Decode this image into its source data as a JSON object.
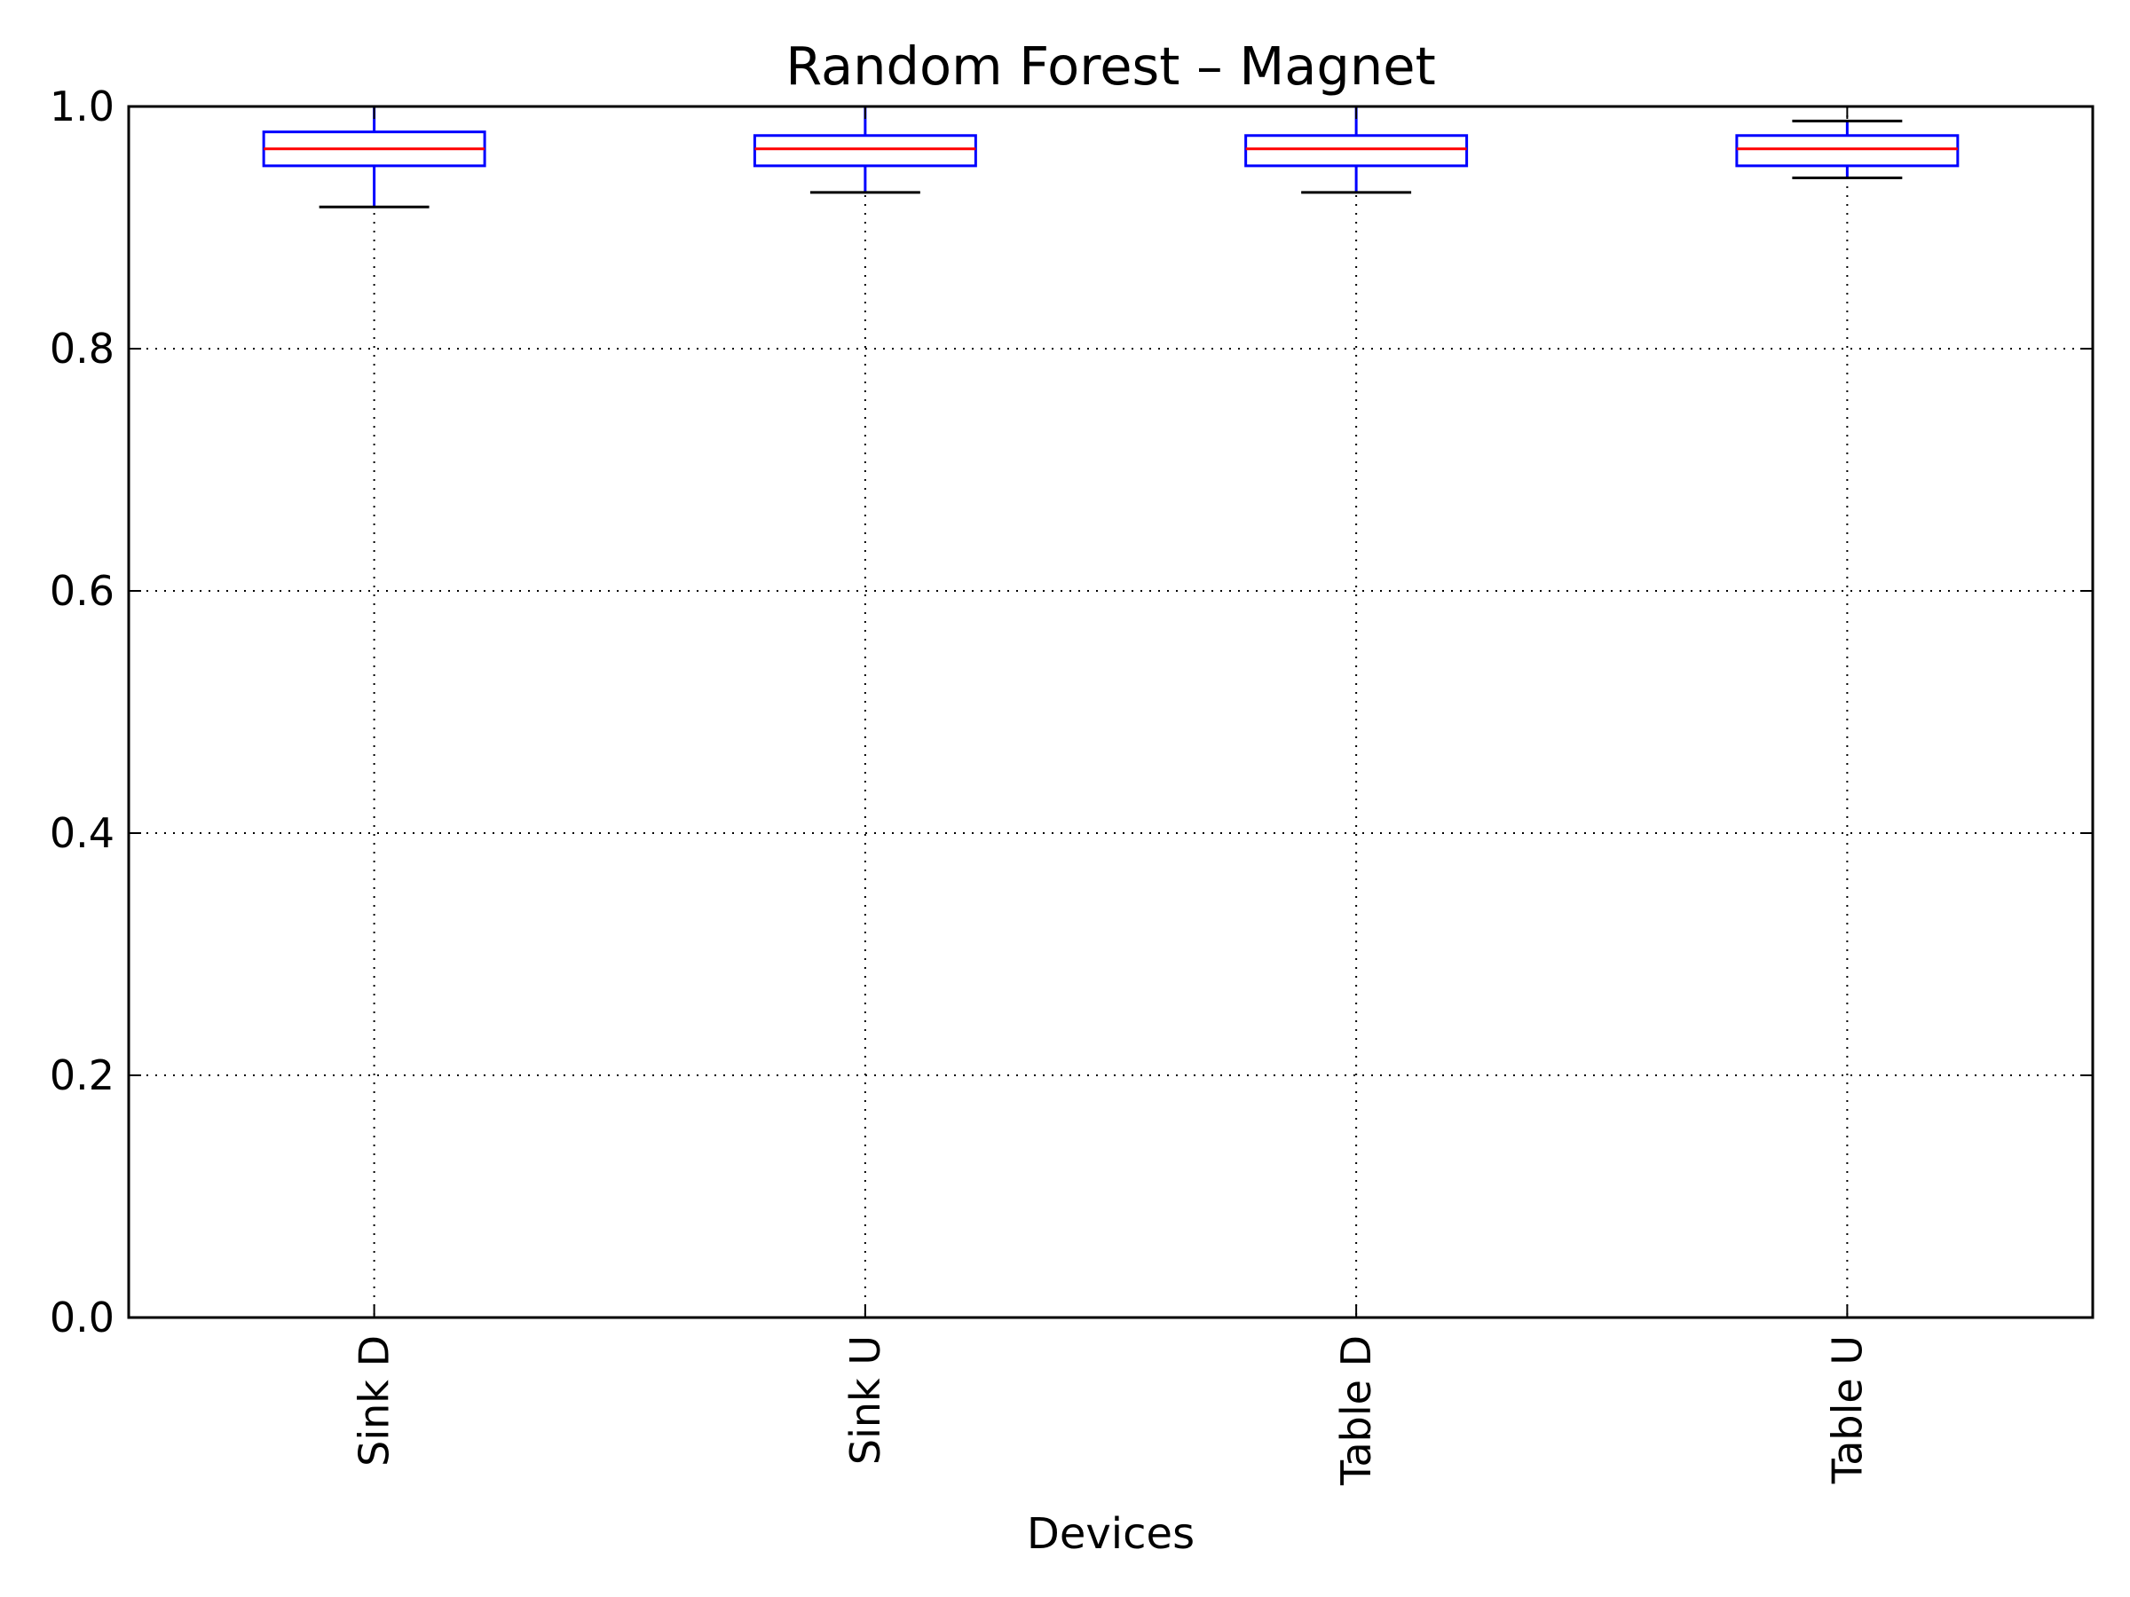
{
  "chart_data": {
    "type": "boxplot",
    "title": "Random Forest – Magnet",
    "xlabel": "Devices",
    "ylabel": "",
    "ylim": [
      0.0,
      1.0
    ],
    "yticks": [
      0.0,
      0.2,
      0.4,
      0.6,
      0.8,
      1.0
    ],
    "ytick_labels": [
      "0.0",
      "0.2",
      "0.4",
      "0.6",
      "0.8",
      "1.0"
    ],
    "categories": [
      "Sink D",
      "Sink U",
      "Table D",
      "Table U"
    ],
    "xtick_rotation": "vertical",
    "grid": true,
    "boxes": [
      {
        "label": "Sink D",
        "whisker_low": 0.917,
        "q1": 0.951,
        "median": 0.965,
        "q3": 0.979,
        "whisker_high": 1.0
      },
      {
        "label": "Sink U",
        "whisker_low": 0.929,
        "q1": 0.951,
        "median": 0.965,
        "q3": 0.976,
        "whisker_high": 1.0
      },
      {
        "label": "Table D",
        "whisker_low": 0.929,
        "q1": 0.951,
        "median": 0.965,
        "q3": 0.976,
        "whisker_high": 1.0
      },
      {
        "label": "Table U",
        "whisker_low": 0.941,
        "q1": 0.951,
        "median": 0.965,
        "q3": 0.976,
        "whisker_high": 0.988
      }
    ],
    "colors": {
      "box": "#0000ff",
      "median": "#ff0000",
      "whisker": "#0000ff",
      "cap": "#000000",
      "grid": "#000000",
      "axes": "#000000"
    }
  }
}
